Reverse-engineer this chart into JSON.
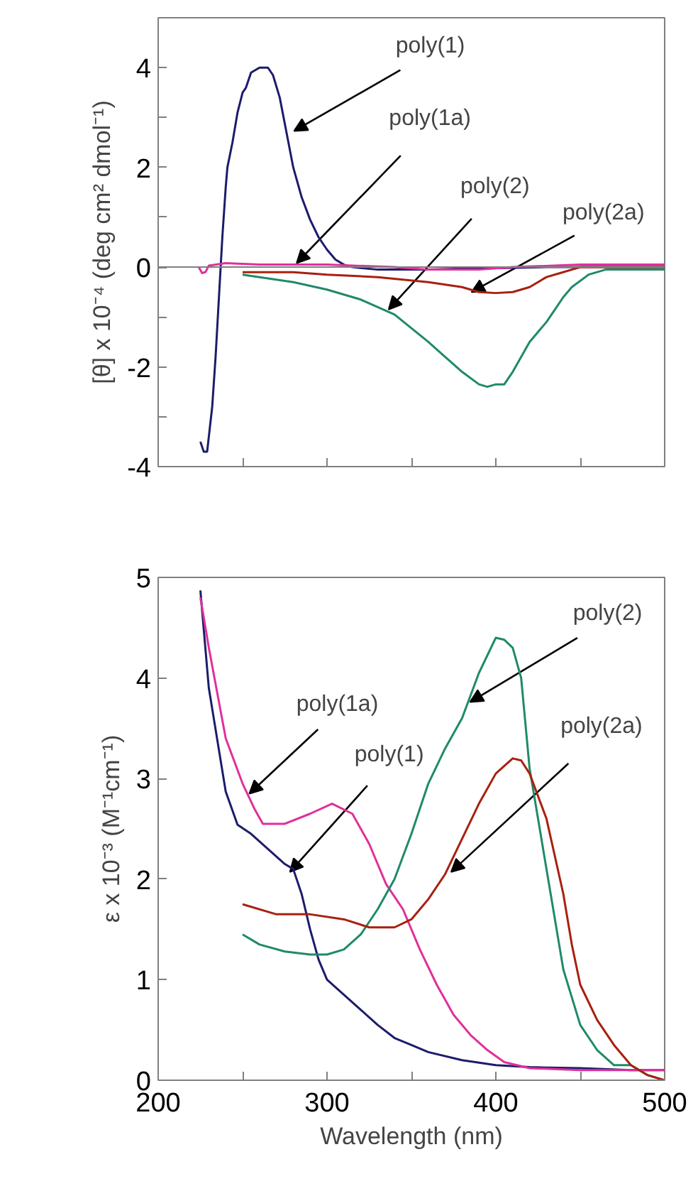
{
  "chart_data": [
    {
      "type": "line",
      "ylabel": "[θ] x 10⁻⁴ (deg cm² dmol⁻¹)",
      "xlim": [
        200,
        500
      ],
      "xticks": [
        {
          "value": 250,
          "label": null
        },
        {
          "value": 300,
          "label": null
        },
        {
          "value": 350,
          "label": null
        },
        {
          "value": 400,
          "label": null
        },
        {
          "value": 450,
          "label": null
        }
      ],
      "ylim": [
        -4,
        5
      ],
      "yticks": [
        -4,
        {
          "value": -3,
          "label": null
        },
        -2,
        {
          "value": -1,
          "label": null
        },
        0,
        {
          "value": 1,
          "label": null
        },
        2,
        {
          "value": 3,
          "label": null
        },
        4
      ],
      "tick_labels": "y",
      "grid": false,
      "marker": "none",
      "line_style": "solid",
      "ref_lines": [
        {
          "axis": "y",
          "value": 0,
          "color": "#808080"
        }
      ],
      "series": [
        {
          "color": "#1c1c6b",
          "x": [
            225,
            227,
            229,
            230,
            232,
            234,
            236,
            237,
            238,
            240,
            241,
            244,
            247,
            250,
            252,
            255,
            260,
            265,
            268,
            272,
            276,
            280,
            285,
            290,
            295,
            300,
            305,
            310,
            315,
            330,
            360,
            380,
            400,
            430,
            500
          ],
          "values": [
            -3.5,
            -3.7,
            -3.7,
            -3.4,
            -2.8,
            -1.8,
            -0.6,
            0,
            0.6,
            1.6,
            2.0,
            2.5,
            3.1,
            3.5,
            3.6,
            3.9,
            4.0,
            4.0,
            3.85,
            3.4,
            2.7,
            2.0,
            1.4,
            0.95,
            0.6,
            0.35,
            0.15,
            0.05,
            0,
            -0.05,
            -0.05,
            -0.03,
            -0.02,
            0,
            0
          ]
        },
        {
          "color": "#e0309a",
          "x": [
            224,
            226,
            228,
            230,
            240,
            260,
            300,
            340,
            360,
            390,
            410,
            450,
            500
          ],
          "values": [
            0,
            -0.12,
            -0.1,
            0.03,
            0.08,
            0.05,
            0.05,
            0,
            -0.05,
            -0.05,
            0,
            0.05,
            0.05
          ]
        },
        {
          "color": "#1f8a6a",
          "x": [
            250,
            260,
            280,
            300,
            320,
            340,
            360,
            370,
            380,
            390,
            395,
            400,
            405,
            410,
            420,
            430,
            435,
            440,
            445,
            455,
            465,
            500
          ],
          "values": [
            -0.15,
            -0.2,
            -0.3,
            -0.45,
            -0.65,
            -0.95,
            -1.5,
            -1.8,
            -2.1,
            -2.35,
            -2.4,
            -2.35,
            -2.35,
            -2.1,
            -1.5,
            -1.1,
            -0.85,
            -0.6,
            -0.4,
            -0.15,
            -0.05,
            -0.05
          ]
        },
        {
          "color": "#a82010",
          "x": [
            250,
            280,
            300,
            330,
            360,
            380,
            390,
            400,
            410,
            420,
            430,
            437,
            450,
            500
          ],
          "values": [
            -0.1,
            -0.1,
            -0.15,
            -0.2,
            -0.3,
            -0.4,
            -0.5,
            -0.52,
            -0.5,
            -0.4,
            -0.2,
            -0.13,
            0,
            0
          ]
        }
      ],
      "annotations": [
        {
          "text": "poly(1)",
          "x": 280.5,
          "y": 2.73
        },
        {
          "text": "poly(1a)",
          "x": 282,
          "y": 0.08
        },
        {
          "text": "poly(2)",
          "x": 336.5,
          "y": -0.85
        },
        {
          "text": "poly(2a)",
          "x": 385.6,
          "y": -0.5
        }
      ]
    },
    {
      "type": "line",
      "xlabel": "Wavelength (nm)",
      "ylabel": "ε x 10⁻³ (M⁻¹cm⁻¹)",
      "xlim": [
        200,
        500
      ],
      "xticks": [
        200,
        {
          "value": 250,
          "label": null
        },
        300,
        {
          "value": 350,
          "label": null
        },
        400,
        {
          "value": 450,
          "label": null
        },
        500
      ],
      "ylim": [
        0,
        5
      ],
      "yticks": [
        0,
        1,
        2,
        3,
        4,
        5
      ],
      "grid": false,
      "marker": "none",
      "line_style": "solid",
      "series": [
        {
          "color": "#1c1c6b",
          "x": [
            225,
            230,
            240,
            247,
            255,
            265,
            275,
            280,
            285,
            290,
            295,
            300,
            310,
            320,
            330,
            340,
            350,
            360,
            380,
            400,
            420,
            450,
            480,
            500
          ],
          "values": [
            4.87,
            3.9,
            2.87,
            2.54,
            2.45,
            2.3,
            2.15,
            2.1,
            1.85,
            1.5,
            1.2,
            1.0,
            0.85,
            0.7,
            0.55,
            0.42,
            0.35,
            0.28,
            0.2,
            0.15,
            0.13,
            0.12,
            0.1,
            0.1
          ]
        },
        {
          "color": "#e0309a",
          "x": [
            225,
            230,
            240,
            250,
            257,
            262,
            275,
            290,
            303,
            315,
            325,
            335,
            345,
            355,
            365,
            375,
            385,
            395,
            405,
            420,
            450,
            500
          ],
          "values": [
            4.8,
            4.3,
            3.4,
            2.95,
            2.7,
            2.55,
            2.55,
            2.65,
            2.75,
            2.65,
            2.35,
            1.95,
            1.7,
            1.3,
            0.95,
            0.65,
            0.45,
            0.3,
            0.18,
            0.12,
            0.1,
            0.1
          ]
        },
        {
          "color": "#1f8a6a",
          "x": [
            250,
            260,
            275,
            290,
            300,
            310,
            320,
            330,
            340,
            350,
            360,
            370,
            380,
            390,
            400,
            405,
            410,
            415,
            420,
            425,
            430,
            440,
            450,
            460,
            470,
            480,
            490,
            500
          ],
          "values": [
            1.45,
            1.35,
            1.28,
            1.25,
            1.25,
            1.3,
            1.45,
            1.7,
            2.0,
            2.45,
            2.95,
            3.3,
            3.6,
            4.05,
            4.4,
            4.38,
            4.3,
            4.0,
            3.1,
            2.6,
            2.1,
            1.1,
            0.55,
            0.3,
            0.15,
            0.15,
            0.05,
            0
          ]
        },
        {
          "color": "#a82010",
          "x": [
            250,
            270,
            290,
            310,
            325,
            340,
            350,
            360,
            370,
            380,
            390,
            400,
            410,
            415,
            420,
            430,
            440,
            445,
            450,
            460,
            470,
            480,
            490,
            500
          ],
          "values": [
            1.75,
            1.65,
            1.65,
            1.6,
            1.52,
            1.52,
            1.6,
            1.8,
            2.05,
            2.4,
            2.75,
            3.05,
            3.2,
            3.18,
            3.05,
            2.6,
            1.85,
            1.35,
            0.95,
            0.6,
            0.35,
            0.15,
            0.05,
            0
          ]
        }
      ],
      "annotations": [
        {
          "text": "poly(1a)",
          "x": 254,
          "y": 2.85
        },
        {
          "text": "poly(1)",
          "x": 278,
          "y": 2.07
        },
        {
          "text": "poly(2)",
          "x": 384.7,
          "y": 3.76
        },
        {
          "text": "poly(2a)",
          "x": 373.5,
          "y": 2.07
        }
      ]
    }
  ]
}
